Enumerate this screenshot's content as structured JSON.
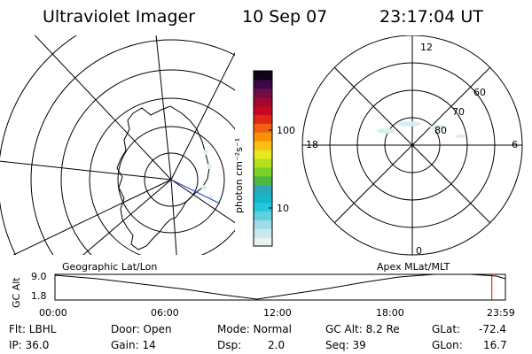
{
  "header": {
    "instrument": "Ultraviolet Imager",
    "date": "10 Sep 07",
    "time": "23:17:04 UT"
  },
  "colorbar": {
    "unit_label": "photon cm⁻²s⁻¹",
    "ticks": [
      "100",
      "10"
    ],
    "colors": [
      "#e6f4f4",
      "#c8e8ec",
      "#9fdce6",
      "#5fd0dc",
      "#22c8d8",
      "#18b4c8",
      "#2aa8b8",
      "#4db840",
      "#7cd028",
      "#b4e01c",
      "#e8e81c",
      "#f8c014",
      "#f89008",
      "#f06010",
      "#e02818",
      "#c80820",
      "#a00830",
      "#700c48",
      "#3c0848",
      "#100418"
    ]
  },
  "left_map": {
    "caption": "Geographic Lat/Lon"
  },
  "right_map": {
    "caption": "Apex MLat/MLT",
    "mlt_labels": {
      "top": "12",
      "right": "6",
      "bottom": "0",
      "left": "18"
    },
    "lat_labels": [
      "60",
      "70",
      "80"
    ]
  },
  "altitude_plot": {
    "axis_label": "GC Alt",
    "y_ticks": [
      "9.0",
      "1.8"
    ],
    "x_ticks": [
      "00:00",
      "06:00",
      "12:00",
      "18:00",
      "23:59"
    ],
    "y_range": [
      1.8,
      9.0
    ],
    "current_time_hours": 23.28,
    "marker_color": "#e00000"
  },
  "status": {
    "flt": "Flt: LBHL",
    "ip": "IP: 36.0",
    "door": "Door: Open",
    "gain": "Gain: 14",
    "mode": "Mode: Normal",
    "dsp_label": "Dsp:",
    "dsp_value": "2.0",
    "gc_alt": "GC Alt: 8.2 Re",
    "seq": "Seq: 39",
    "glat_label": "GLat:",
    "glat_value": "-72.4",
    "glon_label": "GLon:",
    "glon_value": "16.7"
  }
}
